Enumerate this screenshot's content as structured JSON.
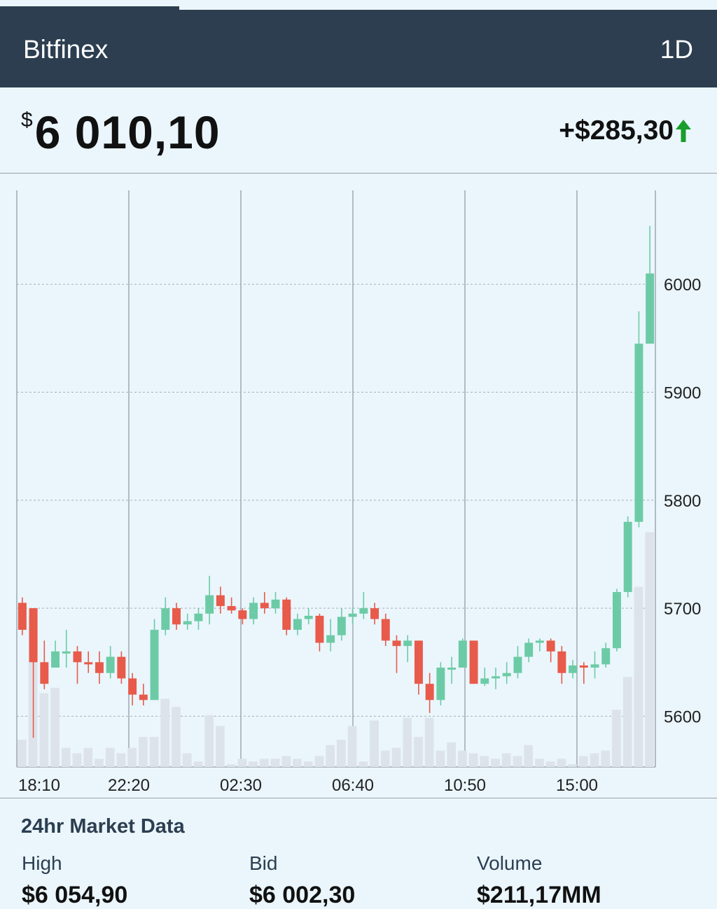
{
  "header": {
    "exchange": "Bitfinex",
    "range": "1D"
  },
  "price": {
    "currency_symbol": "$",
    "value": "6 010,10",
    "change": "+$285,30",
    "change_direction": "up"
  },
  "colors": {
    "up": "#6ccba6",
    "down": "#e85a4a",
    "volume": "#dde3ea",
    "header_bg": "#2c3e50",
    "arrow": "#1a9e2b"
  },
  "chart_data": {
    "type": "candlestick",
    "x_tick_labels": [
      "18:10",
      "22:20",
      "02:30",
      "06:40",
      "10:50",
      "15:00"
    ],
    "y_tick_labels": [
      "5600",
      "5700",
      "5800",
      "5900",
      "6000"
    ],
    "y_ticks": [
      5600,
      5700,
      5800,
      5900,
      6000
    ],
    "ylim": [
      5553,
      6087
    ],
    "candles": [
      [
        5705,
        5680,
        5710,
        5675
      ],
      [
        5700,
        5650,
        5700,
        5580
      ],
      [
        5650,
        5630,
        5670,
        5625
      ],
      [
        5645,
        5660,
        5670,
        5645
      ],
      [
        5660,
        5660,
        5680,
        5645
      ],
      [
        5660,
        5650,
        5665,
        5630
      ],
      [
        5650,
        5648,
        5660,
        5640
      ],
      [
        5650,
        5640,
        5660,
        5630
      ],
      [
        5640,
        5655,
        5665,
        5635
      ],
      [
        5655,
        5635,
        5660,
        5630
      ],
      [
        5635,
        5620,
        5640,
        5610
      ],
      [
        5620,
        5615,
        5630,
        5610
      ],
      [
        5615,
        5680,
        5690,
        5615
      ],
      [
        5680,
        5700,
        5710,
        5675
      ],
      [
        5700,
        5685,
        5705,
        5680
      ],
      [
        5685,
        5688,
        5695,
        5680
      ],
      [
        5688,
        5695,
        5700,
        5680
      ],
      [
        5695,
        5712,
        5730,
        5685
      ],
      [
        5712,
        5702,
        5720,
        5695
      ],
      [
        5702,
        5698,
        5710,
        5695
      ],
      [
        5698,
        5690,
        5700,
        5685
      ],
      [
        5690,
        5705,
        5710,
        5685
      ],
      [
        5705,
        5700,
        5715,
        5695
      ],
      [
        5700,
        5708,
        5715,
        5695
      ],
      [
        5708,
        5680,
        5710,
        5675
      ],
      [
        5680,
        5690,
        5695,
        5675
      ],
      [
        5690,
        5693,
        5700,
        5685
      ],
      [
        5693,
        5668,
        5695,
        5660
      ],
      [
        5668,
        5675,
        5690,
        5660
      ],
      [
        5675,
        5692,
        5700,
        5670
      ],
      [
        5692,
        5695,
        5700,
        5685
      ],
      [
        5695,
        5700,
        5715,
        5690
      ],
      [
        5700,
        5690,
        5705,
        5685
      ],
      [
        5690,
        5670,
        5695,
        5665
      ],
      [
        5670,
        5665,
        5675,
        5640
      ],
      [
        5665,
        5670,
        5675,
        5650
      ],
      [
        5670,
        5630,
        5670,
        5620
      ],
      [
        5630,
        5615,
        5640,
        5603
      ],
      [
        5615,
        5645,
        5650,
        5610
      ],
      [
        5645,
        5645,
        5655,
        5630
      ],
      [
        5645,
        5670,
        5672,
        5645
      ],
      [
        5670,
        5630,
        5670,
        5630
      ],
      [
        5630,
        5635,
        5645,
        5628
      ],
      [
        5635,
        5637,
        5645,
        5625
      ],
      [
        5637,
        5640,
        5650,
        5630
      ],
      [
        5640,
        5655,
        5665,
        5635
      ],
      [
        5655,
        5668,
        5672,
        5650
      ],
      [
        5668,
        5670,
        5672,
        5660
      ],
      [
        5670,
        5660,
        5672,
        5650
      ],
      [
        5660,
        5640,
        5665,
        5630
      ],
      [
        5640,
        5647,
        5652,
        5635
      ],
      [
        5647,
        5645,
        5650,
        5630
      ],
      [
        5645,
        5648,
        5660,
        5635
      ],
      [
        5648,
        5663,
        5668,
        5645
      ],
      [
        5663,
        5715,
        5718,
        5660
      ],
      [
        5715,
        5780,
        5785,
        5710
      ],
      [
        5780,
        5945,
        5975,
        5775
      ],
      [
        5945,
        6010,
        6054,
        5945
      ]
    ],
    "volumes": [
      0.1,
      0.55,
      0.27,
      0.29,
      0.07,
      0.05,
      0.07,
      0.03,
      0.07,
      0.05,
      0.07,
      0.11,
      0.11,
      0.25,
      0.22,
      0.05,
      0.02,
      0.19,
      0.15,
      0.01,
      0.03,
      0.02,
      0.03,
      0.03,
      0.04,
      0.03,
      0.02,
      0.04,
      0.08,
      0.1,
      0.15,
      0.02,
      0.17,
      0.06,
      0.07,
      0.18,
      0.11,
      0.18,
      0.06,
      0.09,
      0.06,
      0.05,
      0.04,
      0.03,
      0.05,
      0.04,
      0.08,
      0.03,
      0.02,
      0.03,
      0.01,
      0.04,
      0.05,
      0.06,
      0.21,
      0.33,
      0.66,
      0.86
    ]
  },
  "market_data": {
    "title": "24hr Market Data",
    "high_label": "High",
    "high_value": "$6 054,90",
    "bid_label": "Bid",
    "bid_value": "$6 002,30",
    "volume_label": "Volume",
    "volume_value": "$211,17MM"
  }
}
